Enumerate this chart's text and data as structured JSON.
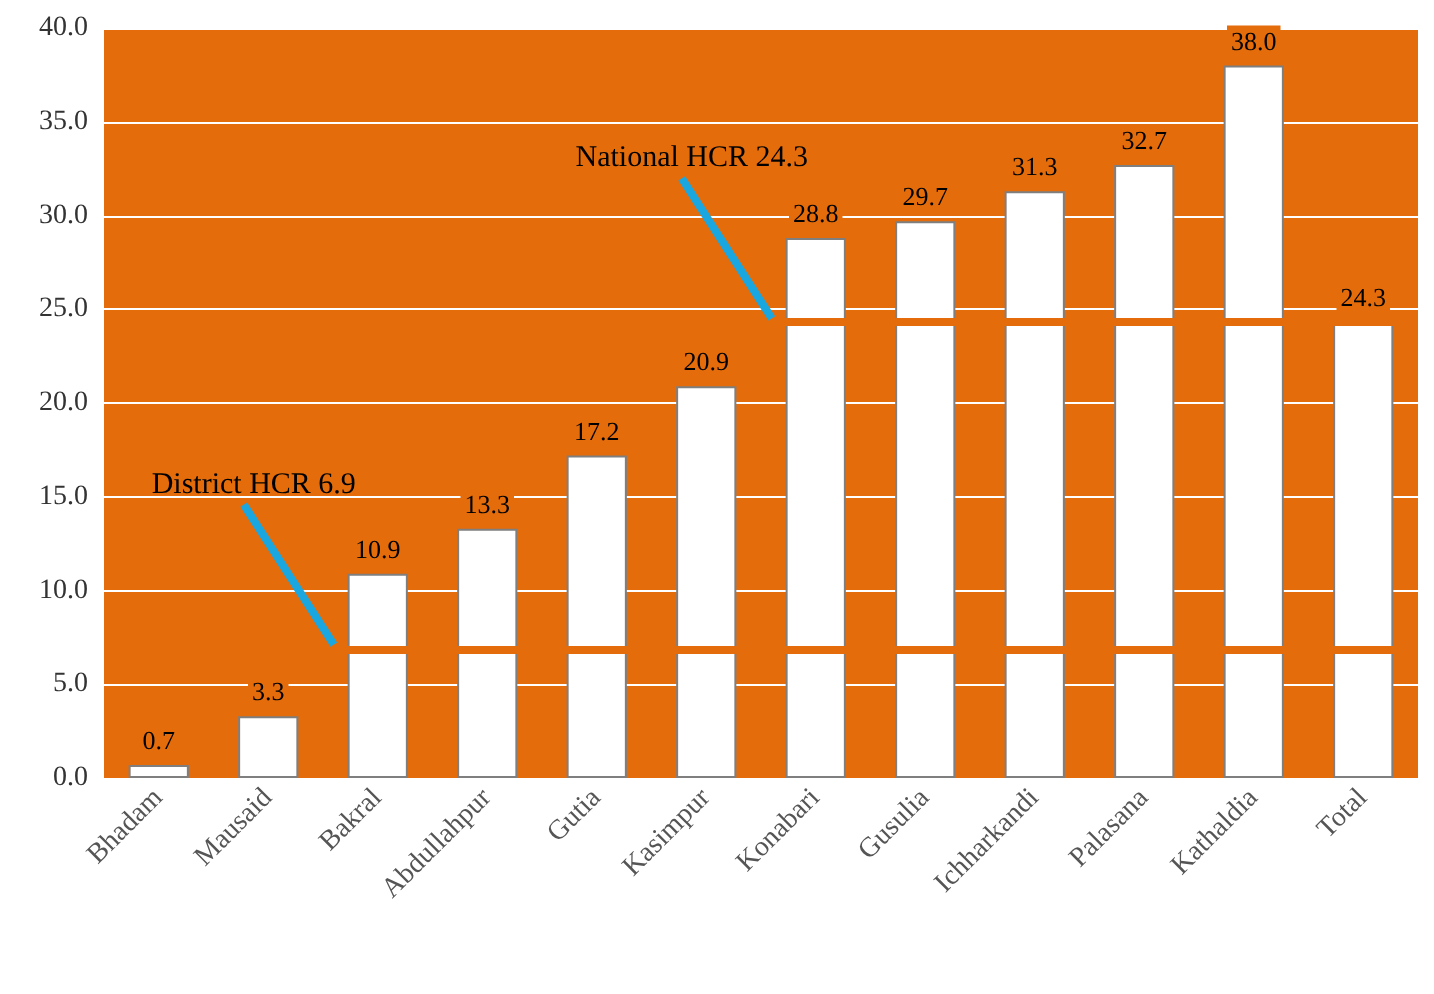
{
  "chart_data": {
    "type": "bar",
    "categories": [
      "Bhadam",
      "Mausaid",
      "Bakral",
      "Abdullahpur",
      "Gutia",
      "Kasimpur",
      "Konabari",
      "Gusulia",
      "Ichharkandi",
      "Palasana",
      "Kathaldia",
      "Total"
    ],
    "values": [
      0.7,
      3.3,
      10.9,
      13.3,
      17.2,
      20.9,
      28.8,
      29.7,
      31.3,
      32.7,
      38.0,
      24.3
    ],
    "value_labels": [
      "0.7",
      "3.3",
      "10.9",
      "13.3",
      "17.2",
      "20.9",
      "28.8",
      "29.7",
      "31.3",
      "32.7",
      "38.0",
      "24.3"
    ],
    "color": "#ffffff",
    "ylim": [
      0,
      40
    ],
    "yticks": [
      {
        "value": 0,
        "label": "0.0"
      },
      {
        "value": 5,
        "label": "5.0"
      },
      {
        "value": 10,
        "label": "10.0"
      },
      {
        "value": 15,
        "label": "15.0"
      },
      {
        "value": 20,
        "label": "20.0"
      },
      {
        "value": 25,
        "label": "25.0"
      },
      {
        "value": 30,
        "label": "30.0"
      },
      {
        "value": 35,
        "label": "35.0"
      },
      {
        "value": 40,
        "label": "40.0"
      }
    ],
    "grid": "y",
    "ref_lines": [
      {
        "axis": "y",
        "value": 6.9,
        "label": "District HCR 6.9",
        "color": "#e46c0a"
      },
      {
        "axis": "y",
        "value": 24.3,
        "label": "National HCR 24.3",
        "color": "#e46c0a"
      }
    ]
  }
}
